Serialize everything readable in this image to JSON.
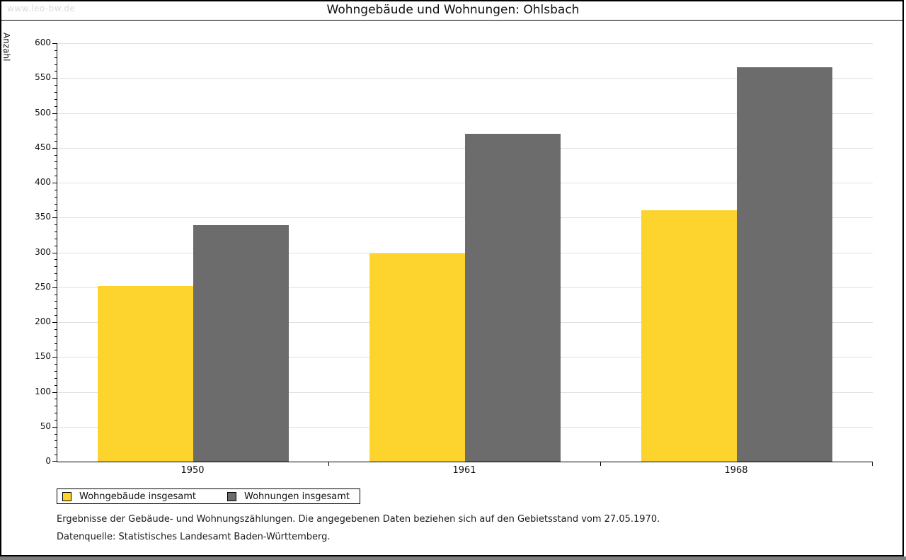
{
  "page": {
    "watermark": "www.leo-bw.de",
    "footnote_line1": "Ergebnisse der Gebäude- und Wohnungszählungen. Die angegebenen Daten beziehen sich auf den Gebietsstand vom 27.05.1970.",
    "footnote_line2": "Datenquelle: Statistisches Landesamt Baden-Württemberg."
  },
  "chart_data": {
    "type": "bar",
    "title": "Wohngebäude und Wohnungen: Ohlsbach",
    "xlabel": "",
    "ylabel": "Anzahl",
    "categories": [
      "1950",
      "1961",
      "1968"
    ],
    "series": [
      {
        "name": "Wohngebäude insgesamt",
        "color": "#FDD42E",
        "values": [
          252,
          298,
          360
        ]
      },
      {
        "name": "Wohnungen insgesamt",
        "color": "#6C6C6C",
        "values": [
          339,
          470,
          566
        ]
      }
    ],
    "ylim": [
      0,
      600
    ],
    "ytick_step": 50,
    "ytick_minor_step": 10,
    "grid": true,
    "legend_position": "bottom-left"
  }
}
